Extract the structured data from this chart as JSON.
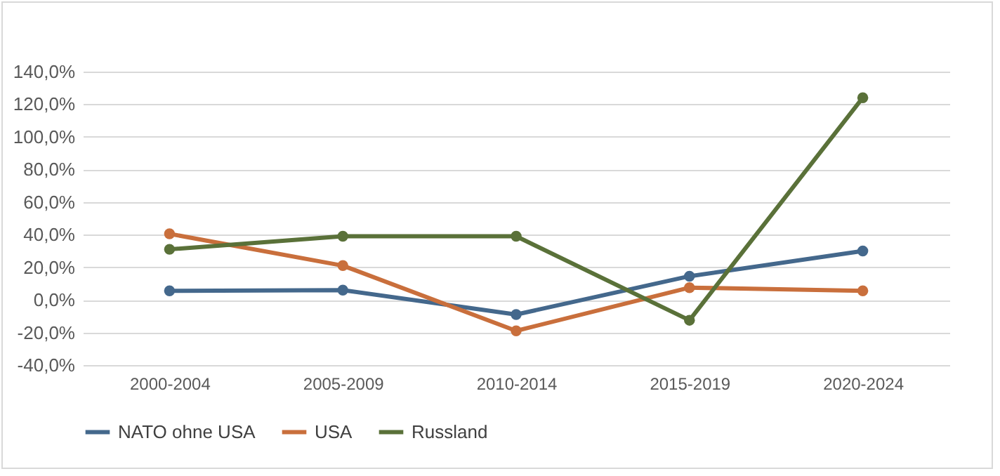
{
  "chart_data": {
    "type": "line",
    "categories": [
      "2000-2004",
      "2005-2009",
      "2010-2014",
      "2015-2019",
      "2020-2024"
    ],
    "series": [
      {
        "name": "NATO ohne USA",
        "color": "#44688c",
        "values": [
          5.5,
          6,
          -9,
          14.5,
          30
        ]
      },
      {
        "name": "USA",
        "color": "#c96f3c",
        "values": [
          40.5,
          21,
          -19,
          7.5,
          5.5
        ]
      },
      {
        "name": "Russland",
        "color": "#5a7139",
        "values": [
          31,
          39,
          39,
          -12.5,
          124
        ]
      }
    ],
    "ylim": [
      -40,
      140
    ],
    "yticks": [
      {
        "value": -40,
        "label": "-40,0%"
      },
      {
        "value": -20,
        "label": "-20,0%"
      },
      {
        "value": 0,
        "label": "0,0%"
      },
      {
        "value": 20,
        "label": "20,0%"
      },
      {
        "value": 40,
        "label": "40,0%"
      },
      {
        "value": 60,
        "label": "60,0%"
      },
      {
        "value": 80,
        "label": "80,0%"
      },
      {
        "value": 100,
        "label": "100,0%"
      },
      {
        "value": 120,
        "label": "120,0%"
      },
      {
        "value": 140,
        "label": "140,0%"
      }
    ],
    "grid": "y",
    "legend": "bottom",
    "marker": "circle",
    "line_style": "solid"
  }
}
